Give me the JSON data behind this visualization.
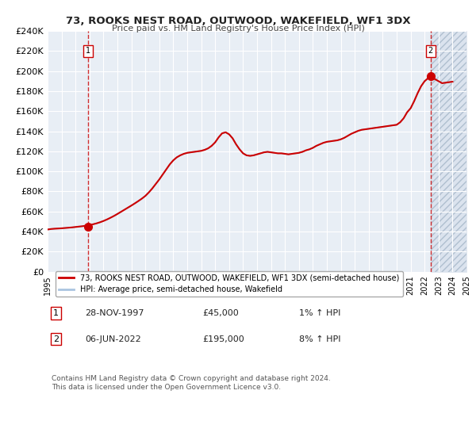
{
  "title": "73, ROOKS NEST ROAD, OUTWOOD, WAKEFIELD, WF1 3DX",
  "subtitle": "Price paid vs. HM Land Registry's House Price Index (HPI)",
  "xlim": [
    1995,
    2025
  ],
  "ylim": [
    0,
    240000
  ],
  "yticks": [
    0,
    20000,
    40000,
    60000,
    80000,
    100000,
    120000,
    140000,
    160000,
    180000,
    200000,
    220000,
    240000
  ],
  "ytick_labels": [
    "£0",
    "£20K",
    "£40K",
    "£60K",
    "£80K",
    "£100K",
    "£120K",
    "£140K",
    "£160K",
    "£180K",
    "£200K",
    "£220K",
    "£240K"
  ],
  "xticks": [
    1995,
    1996,
    1997,
    1998,
    1999,
    2000,
    2001,
    2002,
    2003,
    2004,
    2005,
    2006,
    2007,
    2008,
    2009,
    2010,
    2011,
    2012,
    2013,
    2014,
    2015,
    2016,
    2017,
    2018,
    2019,
    2020,
    2021,
    2022,
    2023,
    2024,
    2025
  ],
  "hpi_color": "#aac4e0",
  "price_color": "#cc0000",
  "background_color": "#e8eef5",
  "plot_bg_color": "#e8eef5",
  "grid_color": "#ffffff",
  "marker1_x": 1997.9,
  "marker1_y": 45000,
  "marker2_x": 2022.43,
  "marker2_y": 195000,
  "vline1_x": 1997.9,
  "vline2_x": 2022.43,
  "legend_label1": "73, ROOKS NEST ROAD, OUTWOOD, WAKEFIELD, WF1 3DX (semi-detached house)",
  "legend_label2": "HPI: Average price, semi-detached house, Wakefield",
  "footnote": "Contains HM Land Registry data © Crown copyright and database right 2024.\nThis data is licensed under the Open Government Licence v3.0.",
  "table_rows": [
    {
      "num": "1",
      "date": "28-NOV-1997",
      "price": "£45,000",
      "hpi": "1% ↑ HPI"
    },
    {
      "num": "2",
      "date": "06-JUN-2022",
      "price": "£195,000",
      "hpi": "8% ↑ HPI"
    }
  ],
  "hpi_data_x": [
    1995.0,
    1995.25,
    1995.5,
    1995.75,
    1996.0,
    1996.25,
    1996.5,
    1996.75,
    1997.0,
    1997.25,
    1997.5,
    1997.75,
    1998.0,
    1998.25,
    1998.5,
    1998.75,
    1999.0,
    1999.25,
    1999.5,
    1999.75,
    2000.0,
    2000.25,
    2000.5,
    2000.75,
    2001.0,
    2001.25,
    2001.5,
    2001.75,
    2002.0,
    2002.25,
    2002.5,
    2002.75,
    2003.0,
    2003.25,
    2003.5,
    2003.75,
    2004.0,
    2004.25,
    2004.5,
    2004.75,
    2005.0,
    2005.25,
    2005.5,
    2005.75,
    2006.0,
    2006.25,
    2006.5,
    2006.75,
    2007.0,
    2007.25,
    2007.5,
    2007.75,
    2008.0,
    2008.25,
    2008.5,
    2008.75,
    2009.0,
    2009.25,
    2009.5,
    2009.75,
    2010.0,
    2010.25,
    2010.5,
    2010.75,
    2011.0,
    2011.25,
    2011.5,
    2011.75,
    2012.0,
    2012.25,
    2012.5,
    2012.75,
    2013.0,
    2013.25,
    2013.5,
    2013.75,
    2014.0,
    2014.25,
    2014.5,
    2014.75,
    2015.0,
    2015.25,
    2015.5,
    2015.75,
    2016.0,
    2016.25,
    2016.5,
    2016.75,
    2017.0,
    2017.25,
    2017.5,
    2017.75,
    2018.0,
    2018.25,
    2018.5,
    2018.75,
    2019.0,
    2019.25,
    2019.5,
    2019.75,
    2020.0,
    2020.25,
    2020.5,
    2020.75,
    2021.0,
    2021.25,
    2021.5,
    2021.75,
    2022.0,
    2022.25,
    2022.5,
    2022.75,
    2023.0,
    2023.25,
    2023.5,
    2023.75,
    2024.0
  ],
  "hpi_data_y": [
    42000,
    42500,
    42800,
    43000,
    43200,
    43500,
    43800,
    44100,
    44500,
    44900,
    45300,
    45800,
    46400,
    47200,
    48100,
    49200,
    50500,
    52000,
    53700,
    55500,
    57500,
    59600,
    61700,
    63800,
    65900,
    68100,
    70400,
    72800,
    75500,
    79000,
    83000,
    87500,
    92000,
    97000,
    102000,
    107000,
    111000,
    114000,
    116000,
    117500,
    118500,
    119000,
    119500,
    120000,
    120500,
    121500,
    123000,
    125500,
    129000,
    134000,
    138000,
    139000,
    137000,
    133000,
    127000,
    122000,
    118000,
    116000,
    115500,
    116000,
    117000,
    118000,
    119000,
    119500,
    119000,
    118500,
    118000,
    118000,
    117500,
    117000,
    117500,
    118000,
    118500,
    119500,
    121000,
    122000,
    123500,
    125500,
    127000,
    128500,
    129500,
    130000,
    130500,
    131000,
    132000,
    133500,
    135500,
    137500,
    139000,
    140500,
    141500,
    142000,
    142500,
    143000,
    143500,
    144000,
    144500,
    145000,
    145500,
    146000,
    146500,
    149000,
    153000,
    159000,
    163000,
    170000,
    178000,
    185000,
    190000,
    193000,
    193500,
    192000,
    190000,
    188000,
    188500,
    189000,
    189500
  ],
  "price_data_x": [
    1995.0,
    1995.25,
    1995.5,
    1995.75,
    1996.0,
    1996.25,
    1996.5,
    1996.75,
    1997.0,
    1997.25,
    1997.5,
    1997.75,
    1998.0,
    1998.25,
    1998.5,
    1998.75,
    1999.0,
    1999.25,
    1999.5,
    1999.75,
    2000.0,
    2000.25,
    2000.5,
    2000.75,
    2001.0,
    2001.25,
    2001.5,
    2001.75,
    2002.0,
    2002.25,
    2002.5,
    2002.75,
    2003.0,
    2003.25,
    2003.5,
    2003.75,
    2004.0,
    2004.25,
    2004.5,
    2004.75,
    2005.0,
    2005.25,
    2005.5,
    2005.75,
    2006.0,
    2006.25,
    2006.5,
    2006.75,
    2007.0,
    2007.25,
    2007.5,
    2007.75,
    2008.0,
    2008.25,
    2008.5,
    2008.75,
    2009.0,
    2009.25,
    2009.5,
    2009.75,
    2010.0,
    2010.25,
    2010.5,
    2010.75,
    2011.0,
    2011.25,
    2011.5,
    2011.75,
    2012.0,
    2012.25,
    2012.5,
    2012.75,
    2013.0,
    2013.25,
    2013.5,
    2013.75,
    2014.0,
    2014.25,
    2014.5,
    2014.75,
    2015.0,
    2015.25,
    2015.5,
    2015.75,
    2016.0,
    2016.25,
    2016.5,
    2016.75,
    2017.0,
    2017.25,
    2017.5,
    2017.75,
    2018.0,
    2018.25,
    2018.5,
    2018.75,
    2019.0,
    2019.25,
    2019.5,
    2019.75,
    2020.0,
    2020.25,
    2020.5,
    2020.75,
    2021.0,
    2021.25,
    2021.5,
    2021.75,
    2022.0,
    2022.25,
    2022.5,
    2022.75,
    2023.0,
    2023.25,
    2023.5,
    2023.75,
    2024.0
  ],
  "price_data_y": [
    42000,
    42500,
    42800,
    43000,
    43200,
    43500,
    43800,
    44100,
    44500,
    44900,
    45300,
    45800,
    46400,
    47200,
    48100,
    49200,
    50500,
    52000,
    53700,
    55500,
    57500,
    59600,
    61700,
    63800,
    65900,
    68100,
    70400,
    72800,
    75500,
    79000,
    83000,
    87500,
    92000,
    97000,
    102000,
    107000,
    111000,
    114000,
    116000,
    117500,
    118500,
    119000,
    119500,
    120000,
    120500,
    121500,
    123000,
    125500,
    129000,
    134000,
    138000,
    139000,
    137000,
    133000,
    127000,
    122000,
    118000,
    116000,
    115500,
    116000,
    117000,
    118000,
    119000,
    119500,
    119000,
    118500,
    118000,
    118000,
    117500,
    117000,
    117500,
    118000,
    118500,
    119500,
    121000,
    122000,
    123500,
    125500,
    127000,
    128500,
    129500,
    130000,
    130500,
    131000,
    132000,
    133500,
    135500,
    137500,
    139000,
    140500,
    141500,
    142000,
    142500,
    143000,
    143500,
    144000,
    144500,
    145000,
    145500,
    146000,
    146500,
    149000,
    153000,
    159000,
    163000,
    170000,
    178000,
    185000,
    190000,
    193000,
    193500,
    192000,
    190000,
    188000,
    188500,
    189000,
    189500
  ],
  "shaded_right_x": 2022.43
}
